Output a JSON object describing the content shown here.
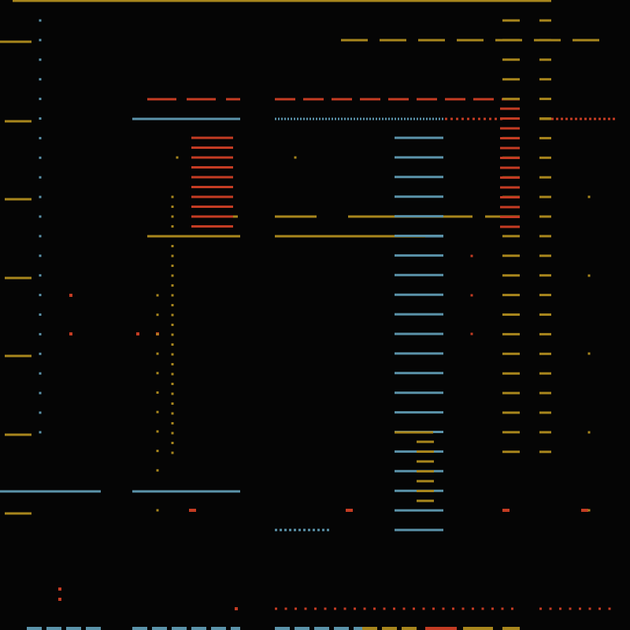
{
  "palette": {
    "background": "#050505",
    "gold": "#a8861d",
    "blue": "#5b93aa",
    "red": "#c43c23"
  }
}
